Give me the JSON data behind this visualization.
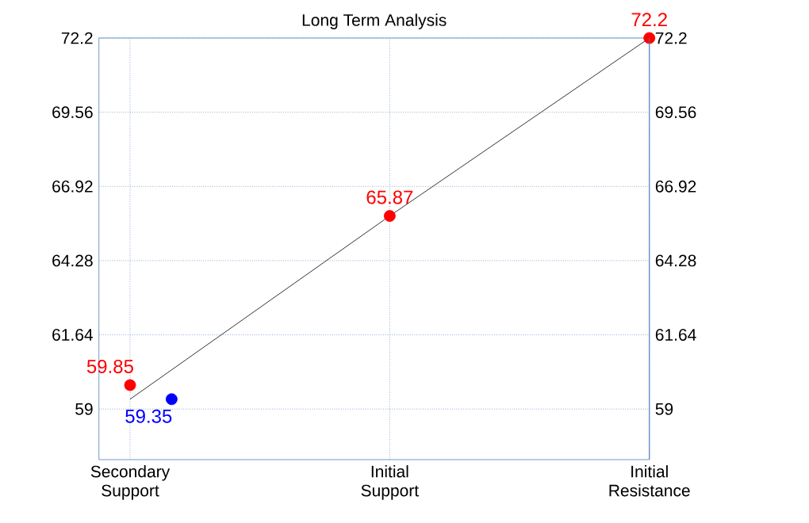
{
  "chart_data": {
    "type": "line",
    "title": "Long Term Analysis",
    "categories": [
      "Secondary Support",
      "Initial Support",
      "Initial Resistance"
    ],
    "series": [
      {
        "color": "#000000",
        "values": [
          59.35,
          65.87,
          72.2
        ],
        "marker": "none"
      },
      {
        "type": "scatter",
        "color": "#ff0000",
        "values": [
          59.85,
          65.87,
          72.2
        ],
        "marker": "circle",
        "value_labels": [
          "59.85",
          "65.87",
          "72.2"
        ]
      },
      {
        "type": "scatter",
        "color": "#0000ff",
        "values": [
          59.35,
          null,
          null
        ],
        "marker": "circle",
        "value_labels": [
          "59.35",
          null,
          null
        ]
      }
    ],
    "ylim": [
      57.2,
      72.2
    ],
    "yticks": [
      59,
      61.64,
      64.28,
      66.92,
      69.56,
      72.2
    ],
    "y2lim": [
      57.2,
      72.2
    ],
    "y2ticks": [
      59,
      61.64,
      64.28,
      66.92,
      69.56,
      72.2
    ],
    "grid": true
  }
}
